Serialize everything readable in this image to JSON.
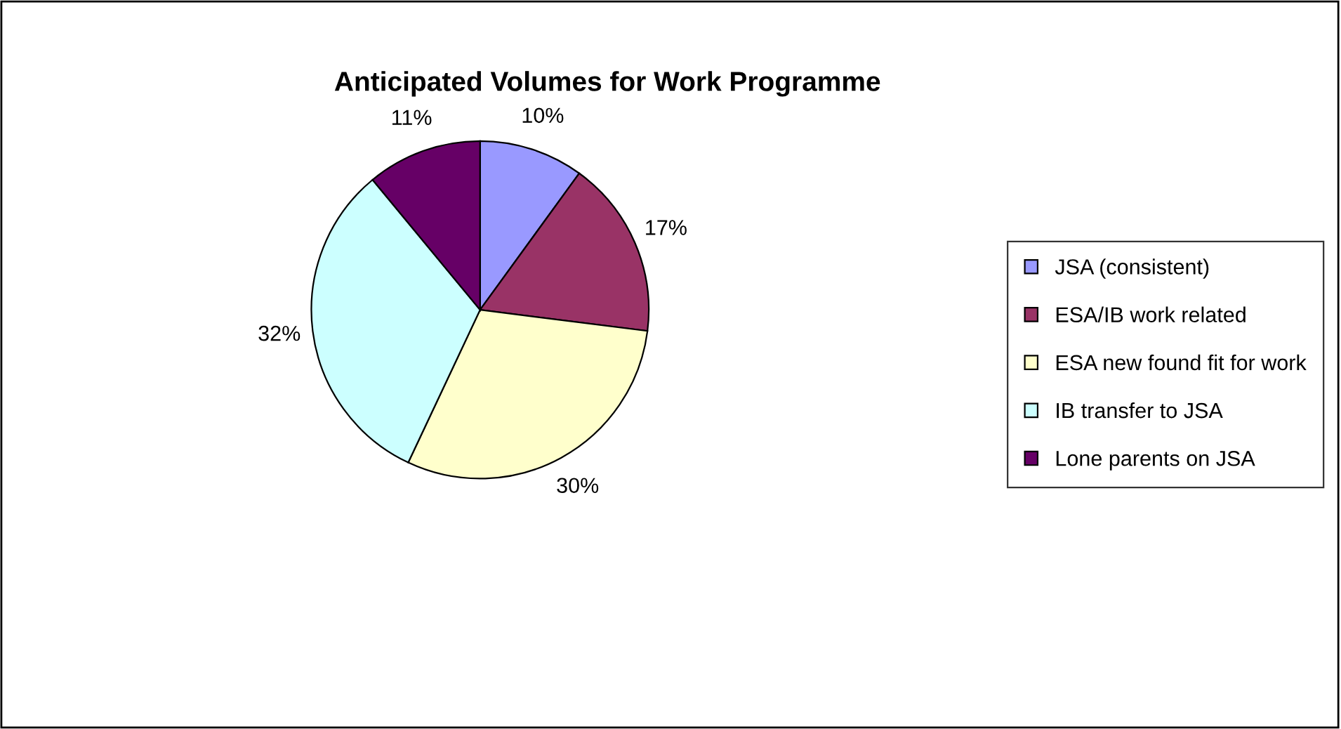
{
  "chart_data": {
    "type": "pie",
    "title": "Anticipated Volumes for Work Programme",
    "categories": [
      "JSA (consistent)",
      "ESA/IB work related",
      "ESA new found fit for work",
      "IB transfer to JSA",
      "Lone parents on JSA"
    ],
    "values": [
      10,
      17,
      30,
      32,
      11
    ],
    "colors": [
      "#9999ff",
      "#993366",
      "#ffffcc",
      "#ccffff",
      "#660066"
    ],
    "value_labels": [
      "10%",
      "17%",
      "30%",
      "32%",
      "11%"
    ],
    "legend": "right"
  }
}
